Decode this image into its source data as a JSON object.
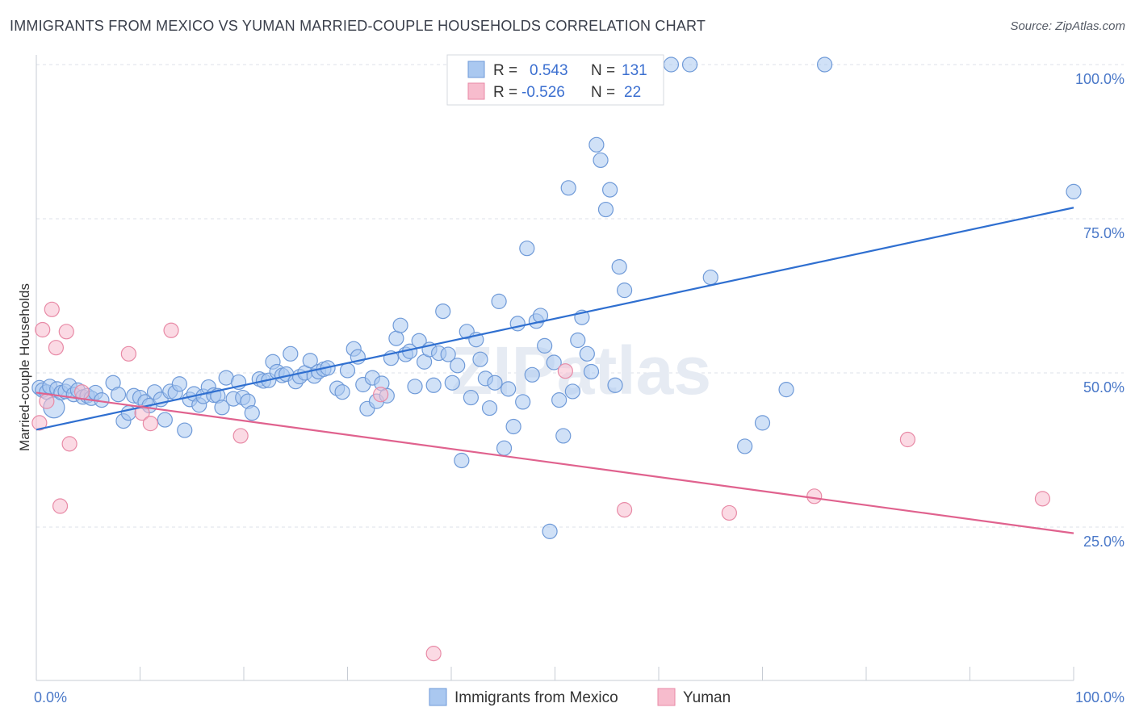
{
  "title": "IMMIGRANTS FROM MEXICO VS YUMAN MARRIED-COUPLE HOUSEHOLDS CORRELATION CHART",
  "source": "Source: ZipAtlas.com",
  "watermark": "ZIPatlas",
  "colors": {
    "blue_fill": "#aac8f0",
    "blue_stroke": "#6f9ad8",
    "blue_line": "#2f6fd0",
    "pink_fill": "#f7bccd",
    "pink_stroke": "#e88aa6",
    "pink_line": "#e0628e",
    "label_blue": "#4a78c8",
    "grid": "#dde2ea"
  },
  "legend": {
    "rows": [
      {
        "r_label": "R =",
        "r_value": "0.543",
        "n_label": "N =",
        "n_value": "131"
      },
      {
        "r_label": "R =",
        "r_value": "-0.526",
        "n_label": "N =",
        "n_value": "22"
      }
    ]
  },
  "chart_data": {
    "type": "scatter",
    "xlabel": "",
    "ylabel": "Married-couple Households",
    "xlim": [
      0,
      100
    ],
    "ylim": [
      0,
      105
    ],
    "x_tick_labels": [
      "0.0%",
      "100.0%"
    ],
    "y_tick_labels": [
      "25.0%",
      "50.0%",
      "75.0%",
      "100.0%"
    ],
    "y_ticks": [
      25,
      50,
      75,
      100
    ],
    "grid": true,
    "legend_position": "bottom-center",
    "series": [
      {
        "name": "Immigrants from Mexico",
        "trend": {
          "x": [
            0,
            100
          ],
          "y": [
            40.8,
            76.8
          ]
        },
        "points": [
          [
            0.3,
            47.6
          ],
          [
            0.6,
            47.2
          ],
          [
            1.0,
            46.9
          ],
          [
            1.3,
            47.8
          ],
          [
            1.7,
            44.4
          ],
          [
            2.0,
            47.4
          ],
          [
            2.4,
            46.8
          ],
          [
            2.8,
            47.0
          ],
          [
            3.2,
            47.9
          ],
          [
            3.6,
            46.5
          ],
          [
            4.0,
            47.2
          ],
          [
            4.5,
            46.1
          ],
          [
            4.9,
            46.3
          ],
          [
            5.3,
            45.9
          ],
          [
            5.7,
            46.8
          ],
          [
            6.3,
            45.6
          ],
          [
            7.4,
            48.4
          ],
          [
            7.9,
            46.5
          ],
          [
            8.4,
            42.2
          ],
          [
            8.9,
            43.5
          ],
          [
            9.4,
            46.3
          ],
          [
            10.0,
            46.0
          ],
          [
            10.5,
            45.3
          ],
          [
            10.9,
            44.7
          ],
          [
            11.4,
            46.9
          ],
          [
            12.0,
            45.7
          ],
          [
            12.4,
            42.4
          ],
          [
            12.9,
            47.0
          ],
          [
            13.4,
            46.8
          ],
          [
            13.8,
            48.2
          ],
          [
            14.3,
            40.7
          ],
          [
            14.8,
            45.7
          ],
          [
            15.2,
            46.6
          ],
          [
            15.7,
            44.8
          ],
          [
            16.1,
            46.2
          ],
          [
            16.6,
            47.7
          ],
          [
            17.1,
            46.4
          ],
          [
            17.5,
            46.3
          ],
          [
            17.9,
            44.4
          ],
          [
            18.3,
            49.2
          ],
          [
            19.0,
            45.8
          ],
          [
            19.5,
            48.5
          ],
          [
            19.9,
            46.0
          ],
          [
            20.4,
            45.4
          ],
          [
            20.8,
            43.5
          ],
          [
            21.5,
            49.0
          ],
          [
            21.9,
            48.7
          ],
          [
            22.4,
            48.8
          ],
          [
            22.8,
            51.8
          ],
          [
            23.2,
            50.2
          ],
          [
            23.7,
            49.6
          ],
          [
            24.1,
            49.8
          ],
          [
            24.5,
            53.1
          ],
          [
            25.0,
            48.6
          ],
          [
            25.4,
            49.4
          ],
          [
            25.9,
            50.0
          ],
          [
            26.4,
            52.0
          ],
          [
            26.8,
            49.5
          ],
          [
            27.2,
            50.2
          ],
          [
            27.7,
            50.6
          ],
          [
            28.1,
            50.8
          ],
          [
            29.0,
            47.5
          ],
          [
            29.5,
            46.9
          ],
          [
            30.0,
            50.4
          ],
          [
            30.6,
            53.9
          ],
          [
            31.0,
            52.6
          ],
          [
            31.5,
            48.1
          ],
          [
            31.9,
            44.2
          ],
          [
            32.4,
            49.2
          ],
          [
            32.8,
            45.4
          ],
          [
            33.3,
            48.3
          ],
          [
            33.8,
            46.3
          ],
          [
            34.2,
            52.4
          ],
          [
            34.7,
            55.6
          ],
          [
            35.1,
            57.7
          ],
          [
            35.6,
            53.0
          ],
          [
            36.0,
            53.5
          ],
          [
            36.5,
            47.8
          ],
          [
            36.9,
            55.2
          ],
          [
            37.4,
            51.8
          ],
          [
            37.9,
            53.8
          ],
          [
            38.3,
            48.0
          ],
          [
            38.8,
            53.2
          ],
          [
            39.2,
            60.0
          ],
          [
            39.7,
            53.0
          ],
          [
            40.1,
            48.4
          ],
          [
            40.6,
            51.2
          ],
          [
            41.0,
            35.8
          ],
          [
            41.5,
            56.7
          ],
          [
            41.9,
            46.0
          ],
          [
            42.4,
            55.4
          ],
          [
            42.8,
            52.2
          ],
          [
            43.3,
            49.1
          ],
          [
            43.7,
            44.3
          ],
          [
            44.2,
            48.4
          ],
          [
            44.6,
            61.6
          ],
          [
            45.1,
            37.8
          ],
          [
            45.5,
            47.4
          ],
          [
            46.0,
            41.3
          ],
          [
            46.4,
            58.0
          ],
          [
            46.9,
            45.3
          ],
          [
            47.3,
            70.2
          ],
          [
            47.8,
            49.7
          ],
          [
            48.2,
            58.4
          ],
          [
            48.6,
            59.3
          ],
          [
            49.0,
            54.4
          ],
          [
            49.5,
            24.3
          ],
          [
            49.9,
            51.7
          ],
          [
            50.4,
            45.6
          ],
          [
            50.8,
            39.8
          ],
          [
            51.3,
            80.0
          ],
          [
            51.7,
            47.0
          ],
          [
            52.2,
            55.3
          ],
          [
            52.6,
            59.0
          ],
          [
            53.1,
            53.1
          ],
          [
            53.5,
            50.2
          ],
          [
            54.0,
            87.0
          ],
          [
            54.4,
            84.5
          ],
          [
            54.9,
            76.5
          ],
          [
            55.3,
            79.7
          ],
          [
            55.8,
            48.0
          ],
          [
            56.2,
            67.2
          ],
          [
            56.7,
            63.4
          ],
          [
            59.0,
            100.0
          ],
          [
            61.2,
            100.0
          ],
          [
            63.0,
            100.0
          ],
          [
            65.0,
            65.5
          ],
          [
            68.3,
            38.1
          ],
          [
            70.0,
            41.9
          ],
          [
            72.3,
            47.3
          ],
          [
            76.0,
            100.0
          ],
          [
            100.0,
            79.4
          ]
        ]
      },
      {
        "name": "Yuman",
        "trend": {
          "x": [
            0,
            100
          ],
          "y": [
            46.8,
            24.0
          ]
        },
        "points": [
          [
            0.3,
            41.9
          ],
          [
            0.6,
            57.0
          ],
          [
            1.0,
            45.4
          ],
          [
            1.5,
            60.3
          ],
          [
            1.9,
            54.1
          ],
          [
            2.3,
            28.4
          ],
          [
            2.9,
            56.7
          ],
          [
            3.2,
            38.5
          ],
          [
            4.4,
            46.9
          ],
          [
            8.9,
            53.1
          ],
          [
            10.2,
            43.5
          ],
          [
            11.0,
            41.8
          ],
          [
            13.0,
            56.9
          ],
          [
            19.7,
            39.8
          ],
          [
            33.2,
            46.5
          ],
          [
            38.3,
            4.5
          ],
          [
            51.0,
            50.3
          ],
          [
            56.7,
            27.8
          ],
          [
            66.8,
            27.3
          ],
          [
            75.0,
            30.0
          ],
          [
            84.0,
            39.2
          ],
          [
            97.0,
            29.6
          ]
        ]
      }
    ]
  },
  "bottom_legend": {
    "items": [
      {
        "label": "Immigrants from Mexico"
      },
      {
        "label": "Yuman"
      }
    ]
  }
}
